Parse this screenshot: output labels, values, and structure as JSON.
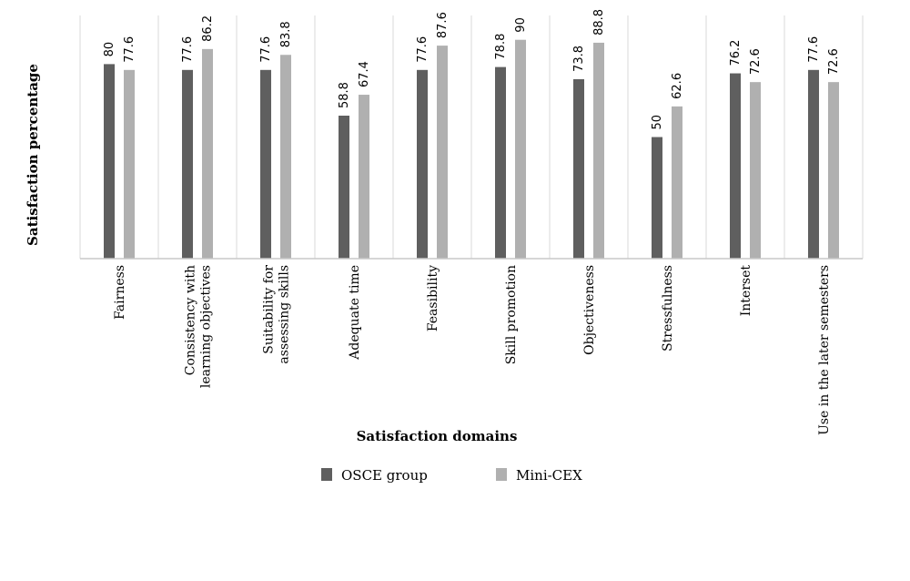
{
  "chart_data": {
    "type": "bar",
    "xlabel": "Satisfaction domains",
    "ylabel": "Satisfaction percentage",
    "categories": [
      "Fairness",
      "Consistency with learning objectives",
      "Suitability for assessing skills",
      "Adequate time",
      "Feasibility",
      "Skill promotion",
      "Objectiveness",
      "Stressfulness",
      "Interset",
      "Use in the later semesters"
    ],
    "category_lines": [
      [
        "Fairness"
      ],
      [
        "Consistency with",
        "learning objectives"
      ],
      [
        "Suitability for",
        "assessing skills"
      ],
      [
        "Adequate time"
      ],
      [
        "Feasibility"
      ],
      [
        "Skill promotion"
      ],
      [
        "Objectiveness"
      ],
      [
        "Stressfulness"
      ],
      [
        "Interset"
      ],
      [
        "Use in the later semesters"
      ]
    ],
    "series": [
      {
        "name": "OSCE group",
        "color": "#5f5f5f",
        "values": [
          80,
          77.6,
          77.6,
          58.8,
          77.6,
          78.8,
          73.8,
          50,
          76.2,
          77.6
        ]
      },
      {
        "name": "Mini-CEX",
        "color": "#b0b0b0",
        "values": [
          77.6,
          86.2,
          83.8,
          67.4,
          87.6,
          90,
          88.8,
          62.6,
          72.6,
          72.6
        ]
      }
    ],
    "ylim": [
      0,
      100
    ],
    "grid": "vertical separators",
    "legend_position": "bottom"
  }
}
